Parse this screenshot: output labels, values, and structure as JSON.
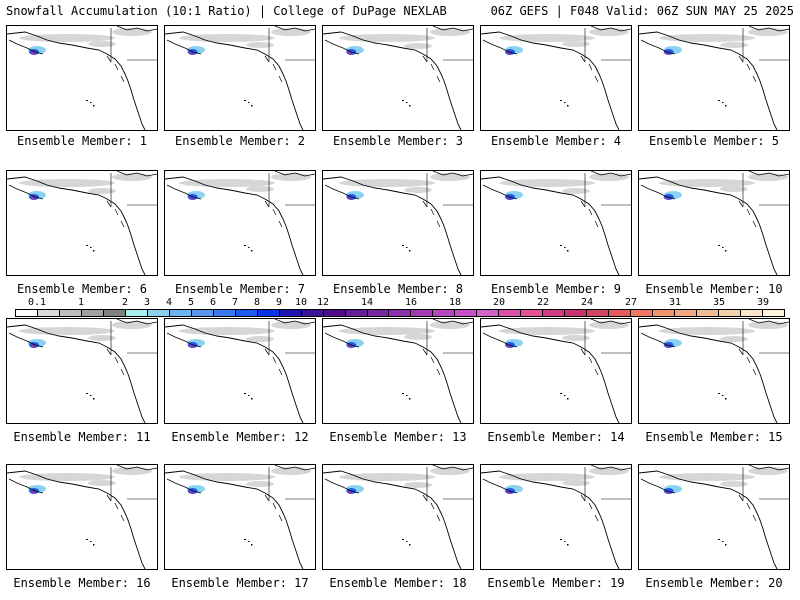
{
  "header": {
    "title_left": "Snowfall Accumulation (10:1 Ratio) | College of DuPage NEXLAB",
    "title_right": "06Z GEFS | F048 Valid: 06Z SUN MAY 25 2025"
  },
  "panels": [
    {
      "label": "Ensemble Member: 1"
    },
    {
      "label": "Ensemble Member: 2"
    },
    {
      "label": "Ensemble Member: 3"
    },
    {
      "label": "Ensemble Member: 4"
    },
    {
      "label": "Ensemble Member: 5"
    },
    {
      "label": "Ensemble Member: 6"
    },
    {
      "label": "Ensemble Member: 7"
    },
    {
      "label": "Ensemble Member: 8"
    },
    {
      "label": "Ensemble Member: 9"
    },
    {
      "label": "Ensemble Member: 10"
    },
    {
      "label": "Ensemble Member: 11"
    },
    {
      "label": "Ensemble Member: 12"
    },
    {
      "label": "Ensemble Member: 13"
    },
    {
      "label": "Ensemble Member: 14"
    },
    {
      "label": "Ensemble Member: 15"
    },
    {
      "label": "Ensemble Member: 16"
    },
    {
      "label": "Ensemble Member: 17"
    },
    {
      "label": "Ensemble Member: 18"
    },
    {
      "label": "Ensemble Member: 19"
    },
    {
      "label": "Ensemble Member: 20"
    }
  ],
  "colorbar": {
    "labels": [
      "0.1",
      "1",
      "2",
      "3",
      "4",
      "5",
      "6",
      "7",
      "8",
      "9",
      "10",
      "12",
      "14",
      "16",
      "18",
      "20",
      "22",
      "24",
      "27",
      "31",
      "35",
      "39"
    ],
    "colors": [
      "#ffffff",
      "#d9d9d9",
      "#bdbdbd",
      "#a0a0a0",
      "#808080",
      "#aaf0f0",
      "#8cd2f0",
      "#6eb4f0",
      "#5a96f0",
      "#3c78f0",
      "#1e5af0",
      "#0a32e6",
      "#1e14b4",
      "#3c1496",
      "#500a8c",
      "#641e96",
      "#7828a0",
      "#8c32aa",
      "#a03cb4",
      "#b446be",
      "#c850c8",
      "#d264c8",
      "#dc50aa",
      "#e65096",
      "#d23c82",
      "#c8326e",
      "#d24664",
      "#e65a5a",
      "#f07864",
      "#f0966e",
      "#f0aa82",
      "#f0be96",
      "#f5d2aa",
      "#fae6c8",
      "#fff5dc"
    ]
  }
}
